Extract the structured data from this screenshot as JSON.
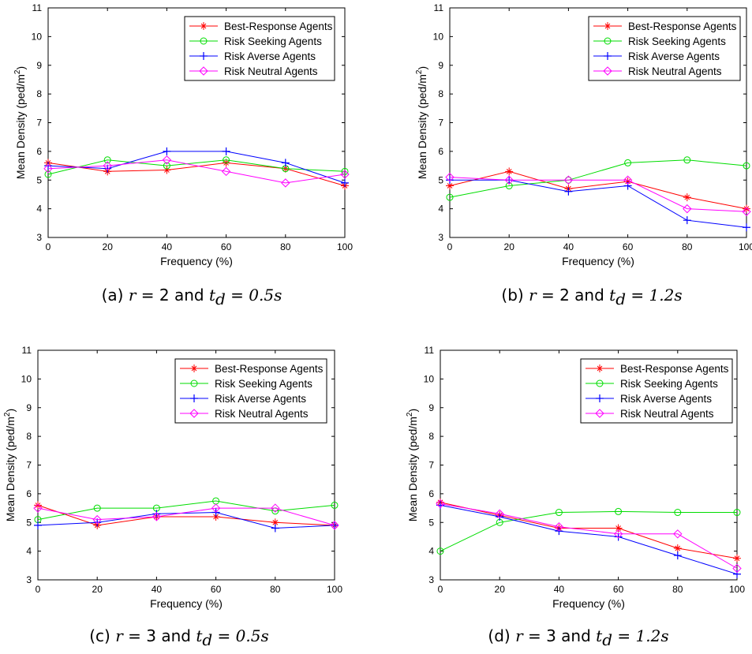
{
  "chart_data": [
    {
      "type": "line",
      "caption": {
        "prefix": "(a) ",
        "r": "2",
        "td": "0.5s"
      },
      "xlabel": "Frequency (%)",
      "ylabel": "Mean Density (ped/m",
      "ylabel_sup": "2",
      "ylabel_end": ")",
      "xlim": [
        0,
        100
      ],
      "ylim": [
        3,
        11
      ],
      "x_ticks": [
        0,
        20,
        40,
        60,
        80,
        100
      ],
      "y_ticks": [
        3,
        4,
        5,
        6,
        7,
        8,
        9,
        10,
        11
      ],
      "x": [
        0,
        20,
        40,
        60,
        80,
        100
      ],
      "legend_position": "top-right",
      "series": [
        {
          "name": "Best-Response Agents",
          "color": "#ff0000",
          "marker": "star",
          "values": [
            5.6,
            5.3,
            5.35,
            5.6,
            5.4,
            4.8
          ]
        },
        {
          "name": "Risk Seeking Agents",
          "color": "#00dd00",
          "marker": "circle",
          "values": [
            5.2,
            5.7,
            5.5,
            5.7,
            5.4,
            5.3
          ]
        },
        {
          "name": "Risk Averse Agents",
          "color": "#0000ff",
          "marker": "plus",
          "values": [
            5.5,
            5.4,
            6.0,
            6.0,
            5.6,
            4.9
          ]
        },
        {
          "name": "Risk Neutral Agents",
          "color": "#ff00ff",
          "marker": "diamond",
          "values": [
            5.4,
            5.5,
            5.7,
            5.3,
            4.9,
            5.2
          ]
        }
      ]
    },
    {
      "type": "line",
      "caption": {
        "prefix": "(b) ",
        "r": "2",
        "td": "1.2s"
      },
      "xlabel": "Frequency (%)",
      "ylabel": "Mean Density (ped/m",
      "ylabel_sup": "2",
      "ylabel_end": ")",
      "xlim": [
        0,
        100
      ],
      "ylim": [
        3,
        11
      ],
      "x_ticks": [
        0,
        20,
        40,
        60,
        80,
        100
      ],
      "y_ticks": [
        3,
        4,
        5,
        6,
        7,
        8,
        9,
        10,
        11
      ],
      "x": [
        0,
        20,
        40,
        60,
        80,
        100
      ],
      "legend_position": "top-right",
      "series": [
        {
          "name": "Best-Response Agents",
          "color": "#ff0000",
          "marker": "star",
          "values": [
            4.8,
            5.3,
            4.7,
            4.95,
            4.4,
            4.0
          ]
        },
        {
          "name": "Risk Seeking Agents",
          "color": "#00dd00",
          "marker": "circle",
          "values": [
            4.4,
            4.8,
            5.0,
            5.6,
            5.7,
            5.5
          ]
        },
        {
          "name": "Risk Averse Agents",
          "color": "#0000ff",
          "marker": "plus",
          "values": [
            5.0,
            5.0,
            4.6,
            4.8,
            3.6,
            3.35
          ]
        },
        {
          "name": "Risk Neutral Agents",
          "color": "#ff00ff",
          "marker": "diamond",
          "values": [
            5.1,
            5.0,
            5.0,
            5.0,
            4.0,
            3.9
          ]
        }
      ]
    },
    {
      "type": "line",
      "caption": {
        "prefix": "(c) ",
        "r": "3",
        "td": "0.5s"
      },
      "xlabel": "Frequency (%)",
      "ylabel": "Mean Density (ped/m",
      "ylabel_sup": "2",
      "ylabel_end": ")",
      "xlim": [
        0,
        100
      ],
      "ylim": [
        3,
        11
      ],
      "x_ticks": [
        0,
        20,
        40,
        60,
        80,
        100
      ],
      "y_ticks": [
        3,
        4,
        5,
        6,
        7,
        8,
        9,
        10,
        11
      ],
      "x": [
        0,
        20,
        40,
        60,
        80,
        100
      ],
      "legend_position": "top-right",
      "series": [
        {
          "name": "Best-Response Agents",
          "color": "#ff0000",
          "marker": "star",
          "values": [
            5.6,
            4.9,
            5.2,
            5.2,
            5.0,
            4.9
          ]
        },
        {
          "name": "Risk Seeking Agents",
          "color": "#00dd00",
          "marker": "circle",
          "values": [
            5.1,
            5.5,
            5.5,
            5.75,
            5.4,
            5.6
          ]
        },
        {
          "name": "Risk Averse Agents",
          "color": "#0000ff",
          "marker": "plus",
          "values": [
            4.9,
            5.0,
            5.3,
            5.35,
            4.8,
            4.9
          ]
        },
        {
          "name": "Risk Neutral Agents",
          "color": "#ff00ff",
          "marker": "diamond",
          "values": [
            5.5,
            5.1,
            5.2,
            5.5,
            5.5,
            4.9
          ]
        }
      ]
    },
    {
      "type": "line",
      "caption": {
        "prefix": "(d) ",
        "r": "3",
        "td": "1.2s"
      },
      "xlabel": "Frequency (%)",
      "ylabel": "Mean Density (ped/m",
      "ylabel_sup": "2",
      "ylabel_end": ")",
      "xlim": [
        0,
        100
      ],
      "ylim": [
        3,
        11
      ],
      "x_ticks": [
        0,
        20,
        40,
        60,
        80,
        100
      ],
      "y_ticks": [
        3,
        4,
        5,
        6,
        7,
        8,
        9,
        10,
        11
      ],
      "x": [
        0,
        20,
        40,
        60,
        80,
        100
      ],
      "legend_position": "top-right",
      "series": [
        {
          "name": "Best-Response Agents",
          "color": "#ff0000",
          "marker": "star",
          "values": [
            5.7,
            5.25,
            4.8,
            4.8,
            4.1,
            3.75
          ]
        },
        {
          "name": "Risk Seeking Agents",
          "color": "#00dd00",
          "marker": "circle",
          "values": [
            4.0,
            5.0,
            5.35,
            5.38,
            5.35,
            5.35
          ]
        },
        {
          "name": "Risk Averse Agents",
          "color": "#0000ff",
          "marker": "plus",
          "values": [
            5.6,
            5.2,
            4.7,
            4.5,
            3.85,
            3.2
          ]
        },
        {
          "name": "Risk Neutral Agents",
          "color": "#ff00ff",
          "marker": "diamond",
          "values": [
            5.65,
            5.3,
            4.85,
            4.6,
            4.6,
            3.4
          ]
        }
      ]
    }
  ]
}
